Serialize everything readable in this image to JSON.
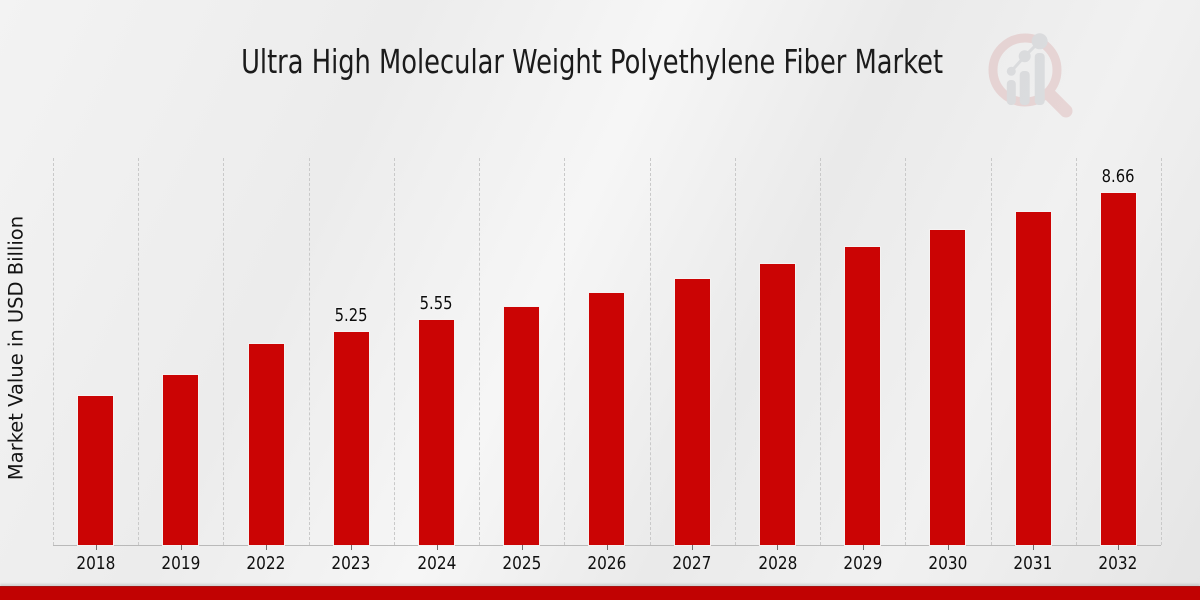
{
  "title": "Ultra High Molecular Weight Polyethylene Fiber Market",
  "y_axis_label": "Market Value in USD Billion",
  "colors": {
    "bar_red": "#cb0404",
    "footer_red": "#c10202",
    "title_text": "#1b1b1b",
    "gridline": "#c9c9c9",
    "logo_ring_pink": "#dcb0b0",
    "logo_bars_gray": "#bfc2c7"
  },
  "chart_data": {
    "type": "bar",
    "title": "Ultra High Molecular Weight Polyethylene Fiber Market",
    "ylabel": "Market Value in USD Billion",
    "xlabel": "",
    "categories": [
      "2018",
      "2019",
      "2022",
      "2023",
      "2024",
      "2025",
      "2026",
      "2027",
      "2028",
      "2029",
      "2030",
      "2031",
      "2032"
    ],
    "values": [
      3.67,
      4.18,
      4.94,
      5.25,
      5.55,
      5.87,
      6.2,
      6.56,
      6.93,
      7.33,
      7.75,
      8.19,
      8.66
    ],
    "bar_labels": [
      "",
      "",
      "",
      "5.25",
      "5.55",
      "",
      "",
      "",
      "",
      "",
      "",
      "",
      "8.66"
    ],
    "ylim": [
      0,
      9.53
    ],
    "grid": "vertical-dashed-category-boundaries",
    "legend": "none",
    "bar_color": "#cb0404",
    "units": "USD Billion"
  }
}
